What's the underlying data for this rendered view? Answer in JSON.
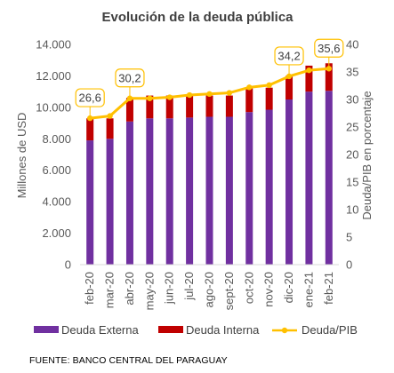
{
  "chart_data": {
    "type": "bar",
    "title": "Evolución  de la deuda pública",
    "categories": [
      "feb-20",
      "mar-20",
      "abr-20",
      "may-20",
      "jun-20",
      "jul-20",
      "ago-20",
      "sept-20",
      "oct-20",
      "nov-20",
      "dic-20",
      "ene-21",
      "feb-21"
    ],
    "series": [
      {
        "name": "Deuda Externa",
        "color": "#7030A0",
        "axis": "left",
        "values": [
          7900,
          8000,
          9100,
          9300,
          9300,
          9350,
          9400,
          9400,
          9700,
          9850,
          10500,
          11000,
          11050
        ]
      },
      {
        "name": "Deuda Interna",
        "color": "#C00000",
        "axis": "left",
        "values": [
          1400,
          1300,
          1500,
          1450,
          1450,
          1400,
          1350,
          1350,
          1500,
          1400,
          1500,
          1650,
          1750
        ]
      },
      {
        "name": "Deuda/PIB",
        "color": "#FFC000",
        "type": "line",
        "axis": "right",
        "values": [
          26.6,
          27.0,
          30.2,
          30.2,
          30.4,
          30.8,
          31.0,
          31.2,
          32.2,
          32.6,
          34.2,
          35.3,
          35.6
        ]
      }
    ],
    "data_labels": [
      {
        "index": 0,
        "text": "26,6"
      },
      {
        "index": 2,
        "text": "30,2"
      },
      {
        "index": 10,
        "text": "34,2"
      },
      {
        "index": 12,
        "text": "35,6"
      }
    ],
    "ylabel": "Millones de USD",
    "y2label": "Deuda/PIB en porcentaje",
    "ylim": [
      0,
      14000
    ],
    "y2lim": [
      0,
      40
    ],
    "yticks": [
      "0",
      "2.000",
      "4.000",
      "6.000",
      "8.000",
      "10.000",
      "12.000",
      "14.000"
    ],
    "y2ticks": [
      "0",
      "5",
      "10",
      "15",
      "20",
      "25",
      "30",
      "35",
      "40"
    ],
    "grid": false,
    "legend_position": "bottom"
  },
  "legend": [
    {
      "label": "Deuda Externa",
      "color": "#7030A0",
      "kind": "box"
    },
    {
      "label": "Deuda Interna",
      "color": "#C00000",
      "kind": "box"
    },
    {
      "label": "Deuda/PIB",
      "color": "#FFC000",
      "kind": "line"
    }
  ],
  "source": "FUENTE: BANCO CENTRAL DEL PARAGUAY"
}
